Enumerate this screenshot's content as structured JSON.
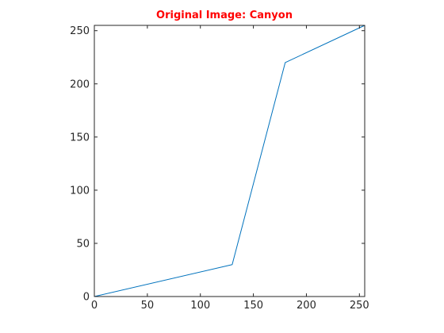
{
  "chart_data": {
    "type": "line",
    "title": "Original Image: Canyon",
    "title_color": "#ff0000",
    "xlabel": "",
    "ylabel": "",
    "xlim": [
      0,
      255
    ],
    "ylim": [
      0,
      255
    ],
    "xticks": [
      0,
      50,
      100,
      150,
      200,
      250
    ],
    "yticks": [
      0,
      50,
      100,
      150,
      200,
      250
    ],
    "grid": false,
    "line_color": "#0072bd",
    "axis_color": "#262626",
    "series": [
      {
        "x": [
          0,
          130,
          180,
          255
        ],
        "y": [
          0,
          30,
          220,
          255
        ]
      }
    ]
  }
}
